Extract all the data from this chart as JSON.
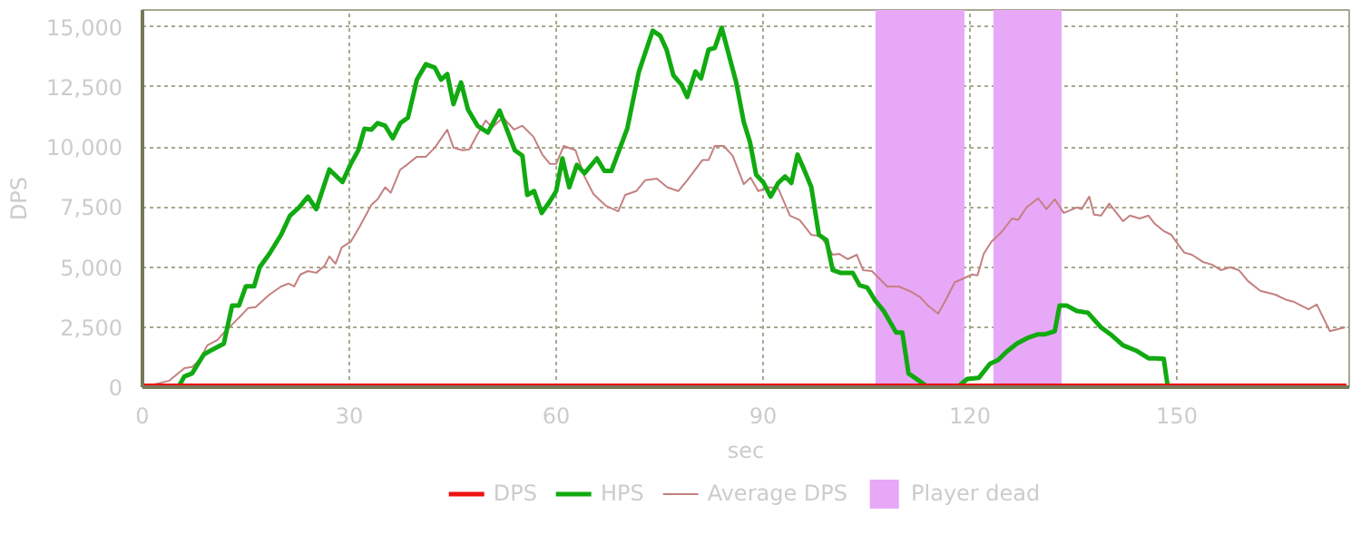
{
  "chart_data": {
    "type": "line",
    "xlabel": "sec",
    "ylabel": "DPS",
    "xlim": [
      0,
      175
    ],
    "ylim": [
      0,
      15700
    ],
    "xticks": [
      0,
      30,
      60,
      90,
      120,
      150
    ],
    "yticks": [
      0,
      {
        "value": 2500,
        "label": "2,500"
      },
      {
        "value": 5000,
        "label": "5,000"
      },
      {
        "value": 7500,
        "label": "7,500"
      },
      {
        "value": 10000,
        "label": "10,000"
      },
      {
        "value": 12500,
        "label": "12,500"
      },
      {
        "value": 15000,
        "label": "15,000"
      }
    ],
    "grid": true,
    "legend": "bottom",
    "marker": "none",
    "line_style": "solid",
    "series": [
      {
        "name": "DPS",
        "color": "#ee1111",
        "x": [
          0,
          174.6
        ],
        "values": [
          0,
          0
        ]
      },
      {
        "name": "HPS",
        "color": "#11aa11",
        "x": [
          0,
          5.2,
          6.1,
          7.2,
          7.9,
          8.9,
          10,
          11.8,
          13,
          14,
          15,
          16.2,
          17,
          18.4,
          20.1,
          21.4,
          22.7,
          24,
          25.2,
          27.1,
          29,
          30.2,
          31.3,
          32.2,
          33.2,
          34.1,
          35.2,
          36.3,
          37.4,
          38.5,
          39.8,
          41.1,
          42.4,
          43.3,
          44.2,
          45.1,
          46.2,
          47.2,
          48.6,
          49.2,
          50.1,
          51.8,
          54,
          55.1,
          55.8,
          56.8,
          57.9,
          59,
          60,
          60.9,
          61.9,
          63,
          64.1,
          65.9,
          67,
          68,
          70.3,
          72,
          74,
          75.1,
          76,
          77,
          78.2,
          79,
          80.2,
          81,
          82.1,
          83,
          84,
          86.1,
          87.2,
          88.1,
          89,
          90,
          91.1,
          92.2,
          93.2,
          94.1,
          95,
          96.1,
          97,
          98.1,
          99.2,
          100.1,
          101.2,
          103,
          104,
          105.1,
          106.2,
          107.5,
          109.3,
          110.2,
          111.1,
          112.8,
          113.9,
          118.2,
          119.6,
          121.3,
          122.9,
          124.1,
          125.3,
          126.8,
          128.3,
          129.9,
          130.9,
          132.3,
          133,
          134,
          135.5,
          137.1,
          139,
          140.6,
          142.2,
          144.1,
          145.9,
          146.9,
          148.1,
          148.7,
          174.6
        ],
        "values": [
          0,
          0,
          450,
          570,
          900,
          1360,
          1540,
          1810,
          3400,
          3400,
          4200,
          4200,
          4990,
          5550,
          6340,
          7140,
          7480,
          7930,
          7410,
          9060,
          8540,
          9290,
          9860,
          10760,
          10720,
          10990,
          10880,
          10360,
          10990,
          11220,
          12800,
          13440,
          13300,
          12800,
          13030,
          11780,
          12690,
          11560,
          10880,
          10760,
          10600,
          11510,
          9860,
          9630,
          8000,
          8160,
          7250,
          7700,
          8160,
          9520,
          8320,
          9250,
          8900,
          9520,
          9000,
          9000,
          10760,
          13140,
          14840,
          14620,
          14050,
          12980,
          12580,
          12080,
          13140,
          12850,
          14050,
          14120,
          14960,
          12690,
          11040,
          10200,
          8840,
          8540,
          7930,
          8500,
          8770,
          8500,
          9680,
          8950,
          8320,
          6340,
          6120,
          4870,
          4760,
          4760,
          4240,
          4150,
          3630,
          3170,
          2270,
          2270,
          570,
          230,
          0,
          0,
          340,
          390,
          970,
          1130,
          1470,
          1810,
          2040,
          2200,
          2200,
          2330,
          3400,
          3400,
          3170,
          3100,
          2490,
          2150,
          1740,
          1520,
          1200,
          1200,
          1180,
          0,
          0
        ]
      },
      {
        "name": "Average DPS",
        "color": "#c48080",
        "x": [
          0,
          1.7,
          3.9,
          6.1,
          7.2,
          8.3,
          9.4,
          10.9,
          11.8,
          13,
          14.2,
          15.3,
          16.4,
          18.4,
          20.1,
          21.2,
          22,
          22.9,
          24,
          25.2,
          26.4,
          27.1,
          28,
          28.9,
          30.2,
          31.5,
          33.2,
          34.1,
          35.2,
          36,
          37.4,
          38.5,
          39.8,
          41.1,
          42.4,
          44.2,
          45.1,
          46.4,
          47.4,
          48.6,
          49.8,
          50.7,
          52.3,
          53.9,
          55.1,
          56.7,
          58,
          59.1,
          60,
          61.1,
          62.8,
          64.1,
          65.4,
          67.2,
          69,
          70,
          71.6,
          72.9,
          74.6,
          76.1,
          77.7,
          79,
          81.2,
          82.1,
          83,
          84.3,
          85.6,
          87.2,
          88.2,
          89.3,
          90.9,
          92.2,
          93.9,
          95.3,
          97,
          98.4,
          100.1,
          101,
          102.3,
          103.6,
          104.5,
          105.8,
          108,
          109.7,
          111.5,
          112.8,
          113.9,
          115.4,
          116.5,
          117.8,
          119.1,
          120.3,
          121.1,
          122,
          123.1,
          124.6,
          126.1,
          127,
          128.2,
          129.9,
          131.1,
          132.3,
          133.6,
          135.5,
          136.2,
          137.3,
          138,
          139,
          140.2,
          142.2,
          143.2,
          144.6,
          145.9,
          146.8,
          148.1,
          149.2,
          150.3,
          151.1,
          152.2,
          153.8,
          155.1,
          156.4,
          157.7,
          159,
          160.3,
          162.1,
          164.3,
          165.9,
          166.9,
          169.1,
          170.3,
          172.2,
          174.4
        ],
        "values": [
          50,
          110,
          270,
          790,
          840,
          1130,
          1740,
          1970,
          2270,
          2610,
          2950,
          3290,
          3330,
          3850,
          4190,
          4310,
          4190,
          4690,
          4830,
          4760,
          5050,
          5440,
          5140,
          5820,
          6050,
          6680,
          7590,
          7820,
          8320,
          8090,
          9060,
          9290,
          9590,
          9590,
          9970,
          10720,
          9970,
          9860,
          9900,
          10540,
          11100,
          10810,
          11220,
          10720,
          10880,
          10420,
          9680,
          9290,
          9290,
          10040,
          9860,
          8770,
          8040,
          7550,
          7320,
          8000,
          8160,
          8610,
          8680,
          8320,
          8160,
          8610,
          9450,
          9450,
          10040,
          10040,
          9630,
          8450,
          8720,
          8160,
          8320,
          8270,
          7140,
          6960,
          6340,
          6280,
          5510,
          5550,
          5330,
          5510,
          4870,
          4830,
          4190,
          4190,
          3970,
          3740,
          3400,
          3060,
          3630,
          4370,
          4530,
          4690,
          4650,
          5550,
          6050,
          6460,
          7020,
          6960,
          7480,
          7860,
          7410,
          7820,
          7250,
          7480,
          7410,
          7930,
          7180,
          7140,
          7640,
          6910,
          7140,
          7020,
          7140,
          6800,
          6500,
          6340,
          5890,
          5600,
          5510,
          5210,
          5100,
          4870,
          4990,
          4870,
          4420,
          4010,
          3850,
          3630,
          3560,
          3240,
          3440,
          2330,
          2490
        ]
      }
    ],
    "bands": [
      {
        "axis": "x",
        "from": 106.3,
        "to": 119.2,
        "label": "Player dead",
        "color": "#e8a8f8"
      },
      {
        "axis": "x",
        "from": 123.4,
        "to": 133.3,
        "color": "#e8a8f8"
      }
    ]
  }
}
